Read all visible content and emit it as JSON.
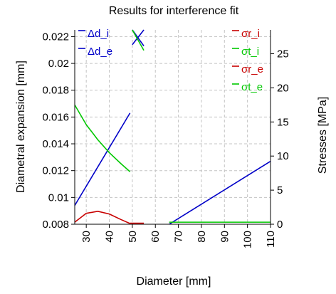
{
  "chart_data": {
    "type": "line",
    "title": "Results for interference fit",
    "xlabel": "Diameter [mm]",
    "ylabel_left": "Diametral expansion [mm]",
    "ylabel_right": "Stresses [MPa]",
    "xlim": [
      25,
      110
    ],
    "ylim_left": [
      0.008,
      0.0225
    ],
    "ylim_right": [
      0,
      28.5
    ],
    "x_ticks": [
      30,
      40,
      50,
      60,
      70,
      80,
      90,
      100,
      110
    ],
    "y_left_ticks": [
      0.008,
      0.01,
      0.012,
      0.014,
      0.016,
      0.018,
      0.02,
      0.022
    ],
    "y_right_ticks": [
      0,
      5,
      10,
      15,
      20,
      25
    ],
    "grid": true,
    "legend_left": "top-left",
    "legend_right": "top-right",
    "series": [
      {
        "name": "Δd_i",
        "axis": "left",
        "color": "#0000c8",
        "x": [
          25,
          49
        ],
        "y": [
          0.0094,
          0.0163
        ]
      },
      {
        "name": "Δd_i",
        "axis": "left",
        "color": "#0000c8",
        "x": [
          50,
          55
        ],
        "y": [
          0.0214,
          0.0225
        ]
      },
      {
        "name": "Δd_e",
        "axis": "left",
        "color": "#0000c8",
        "x": [
          50,
          55
        ],
        "y": [
          0.0225,
          0.0213
        ]
      },
      {
        "name": "Δd_e",
        "axis": "left",
        "color": "#0000c8",
        "x": [
          66,
          110
        ],
        "y": [
          0.008,
          0.0127
        ]
      },
      {
        "name": "σr_i",
        "axis": "right",
        "color": "#c80000",
        "x": [
          25,
          30,
          35,
          40,
          45,
          49
        ],
        "y": [
          0.3,
          1.6,
          1.9,
          1.5,
          0.7,
          0.1
        ]
      },
      {
        "name": "σr_e",
        "axis": "right",
        "color": "#c80000",
        "x": [
          49,
          55
        ],
        "y": [
          0.15,
          0.15
        ]
      },
      {
        "name": "σt_i",
        "axis": "right",
        "color": "#00c800",
        "x": [
          25,
          30,
          35,
          40,
          45,
          49
        ],
        "y": [
          17.5,
          14.6,
          12.4,
          10.5,
          8.9,
          7.7
        ]
      },
      {
        "name": "σt_e",
        "axis": "right",
        "color": "#00c800",
        "x": [
          50,
          55
        ],
        "y": [
          28.5,
          25.5
        ]
      },
      {
        "name": "σt_e",
        "axis": "right",
        "color": "#00c800",
        "x": [
          66,
          110
        ],
        "y": [
          0.3,
          0.3
        ]
      }
    ],
    "legend_left_entries": [
      {
        "label": "Δd_i",
        "color": "#0000c8"
      },
      {
        "label": "Δd_e",
        "color": "#0000c8"
      }
    ],
    "legend_right_entries": [
      {
        "label": "σr_i",
        "color": "#c80000"
      },
      {
        "label": "σt_i",
        "color": "#00c800"
      },
      {
        "label": "σr_e",
        "color": "#c80000"
      },
      {
        "label": "σt_e",
        "color": "#00c800"
      }
    ]
  }
}
